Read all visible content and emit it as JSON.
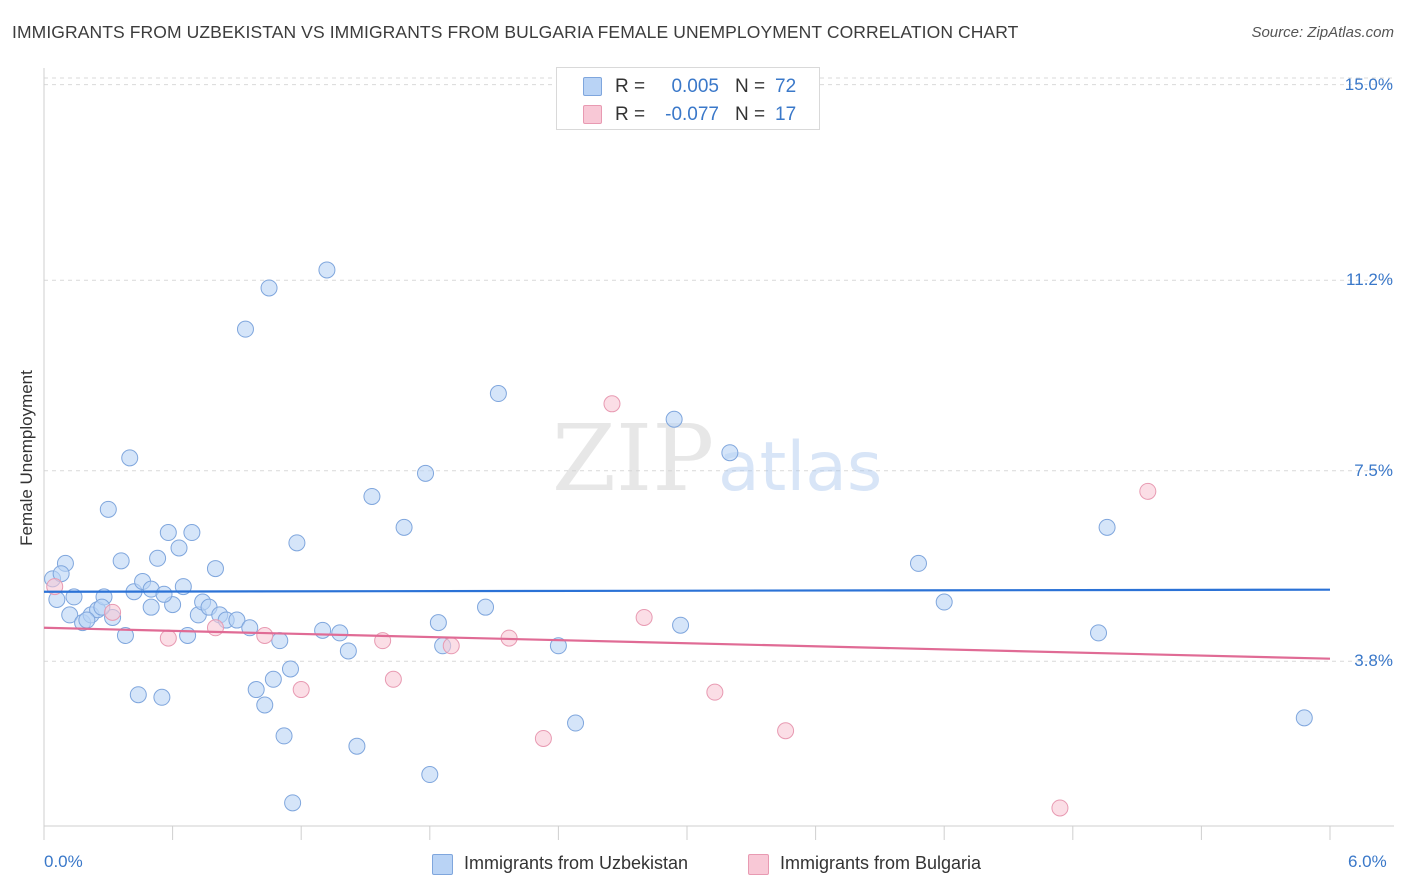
{
  "header": {
    "title": "IMMIGRANTS FROM UZBEKISTAN VS IMMIGRANTS FROM BULGARIA FEMALE UNEMPLOYMENT CORRELATION CHART",
    "source": "Source: ZipAtlas.com"
  },
  "watermark": {
    "zip": "ZIP",
    "atlas": "atlas"
  },
  "stats": [
    {
      "r_label": "R =",
      "r_value": "0.005",
      "n_label": "N =",
      "n_value": "72"
    },
    {
      "r_label": "R =",
      "r_value": "-0.077",
      "n_label": "N =",
      "n_value": "17"
    }
  ],
  "legend": [
    {
      "label": "Immigrants from Uzbekistan"
    },
    {
      "label": "Immigrants from Bulgaria"
    }
  ],
  "colors": {
    "series1_fill": "#b9d3f5",
    "series1_stroke": "#7fa6dd",
    "series1_line": "#2b72d6",
    "series2_fill": "#f8c8d6",
    "series2_stroke": "#e89ab2",
    "series2_line": "#e06b95",
    "tick_text": "#3a78c9",
    "grid": "#d9d9d9"
  },
  "chart_data": {
    "type": "scatter",
    "title": "IMMIGRANTS FROM UZBEKISTAN VS IMMIGRANTS FROM BULGARIA FEMALE UNEMPLOYMENT CORRELATION CHART",
    "xlabel": "",
    "ylabel": "Female Unemployment",
    "xlim": [
      0,
      6.0
    ],
    "ylim": [
      0.6,
      15.4
    ],
    "x_tick_labels": [
      "0.0%",
      "6.0%"
    ],
    "y_ticks": [
      3.8,
      7.5,
      11.2,
      15.0
    ],
    "y_tick_labels": [
      "3.8%",
      "7.5%",
      "11.2%",
      "15.0%"
    ],
    "series": [
      {
        "name": "Immigrants from Uzbekistan",
        "trend": {
          "x": [
            0,
            6.0
          ],
          "y": [
            5.15,
            5.19
          ]
        },
        "points": [
          [
            0.04,
            5.4
          ],
          [
            0.06,
            5.0
          ],
          [
            0.1,
            5.7
          ],
          [
            0.12,
            4.7
          ],
          [
            0.14,
            5.05
          ],
          [
            0.18,
            4.55
          ],
          [
            0.22,
            4.7
          ],
          [
            0.25,
            4.8
          ],
          [
            0.28,
            5.05
          ],
          [
            0.3,
            6.75
          ],
          [
            0.32,
            4.65
          ],
          [
            0.36,
            5.75
          ],
          [
            0.38,
            4.3
          ],
          [
            0.4,
            7.75
          ],
          [
            0.42,
            5.15
          ],
          [
            0.44,
            3.15
          ],
          [
            0.46,
            5.35
          ],
          [
            0.5,
            4.85
          ],
          [
            0.5,
            5.2
          ],
          [
            0.53,
            5.8
          ],
          [
            0.55,
            3.1
          ],
          [
            0.58,
            6.3
          ],
          [
            0.6,
            4.9
          ],
          [
            0.63,
            6.0
          ],
          [
            0.65,
            5.25
          ],
          [
            0.67,
            4.3
          ],
          [
            0.69,
            6.3
          ],
          [
            0.72,
            4.7
          ],
          [
            0.74,
            4.95
          ],
          [
            0.77,
            4.85
          ],
          [
            0.8,
            5.6
          ],
          [
            0.82,
            4.7
          ],
          [
            0.85,
            4.6
          ],
          [
            0.9,
            4.6
          ],
          [
            0.94,
            10.25
          ],
          [
            0.96,
            4.45
          ],
          [
            0.99,
            3.25
          ],
          [
            1.03,
            2.95
          ],
          [
            1.05,
            11.05
          ],
          [
            1.07,
            3.45
          ],
          [
            1.1,
            4.2
          ],
          [
            1.12,
            2.35
          ],
          [
            1.15,
            3.65
          ],
          [
            1.16,
            1.05
          ],
          [
            1.18,
            6.1
          ],
          [
            1.3,
            4.4
          ],
          [
            1.32,
            11.4
          ],
          [
            1.38,
            4.35
          ],
          [
            1.42,
            4.0
          ],
          [
            1.46,
            2.15
          ],
          [
            1.53,
            7.0
          ],
          [
            1.68,
            6.4
          ],
          [
            1.78,
            7.45
          ],
          [
            1.8,
            1.6
          ],
          [
            1.84,
            4.55
          ],
          [
            1.86,
            4.1
          ],
          [
            2.06,
            4.85
          ],
          [
            2.12,
            9.0
          ],
          [
            2.4,
            4.1
          ],
          [
            2.48,
            2.6
          ],
          [
            2.94,
            8.5
          ],
          [
            2.97,
            4.5
          ],
          [
            3.2,
            7.85
          ],
          [
            4.08,
            5.7
          ],
          [
            4.2,
            4.95
          ],
          [
            4.92,
            4.35
          ],
          [
            4.96,
            6.4
          ],
          [
            5.88,
            2.7
          ],
          [
            0.08,
            5.5
          ],
          [
            0.2,
            4.6
          ],
          [
            0.27,
            4.85
          ],
          [
            0.56,
            5.1
          ]
        ]
      },
      {
        "name": "Immigrants from Bulgaria",
        "trend": {
          "x": [
            0,
            6.0
          ],
          "y": [
            4.45,
            3.85
          ]
        },
        "points": [
          [
            0.05,
            5.25
          ],
          [
            0.32,
            4.75
          ],
          [
            0.58,
            4.25
          ],
          [
            0.8,
            4.45
          ],
          [
            1.03,
            4.3
          ],
          [
            1.2,
            3.25
          ],
          [
            1.58,
            4.2
          ],
          [
            1.63,
            3.45
          ],
          [
            1.9,
            4.1
          ],
          [
            2.17,
            4.25
          ],
          [
            2.33,
            2.3
          ],
          [
            2.65,
            8.8
          ],
          [
            2.8,
            4.65
          ],
          [
            3.13,
            3.2
          ],
          [
            3.46,
            2.45
          ],
          [
            4.74,
            0.95
          ],
          [
            5.15,
            7.1
          ]
        ]
      }
    ]
  }
}
